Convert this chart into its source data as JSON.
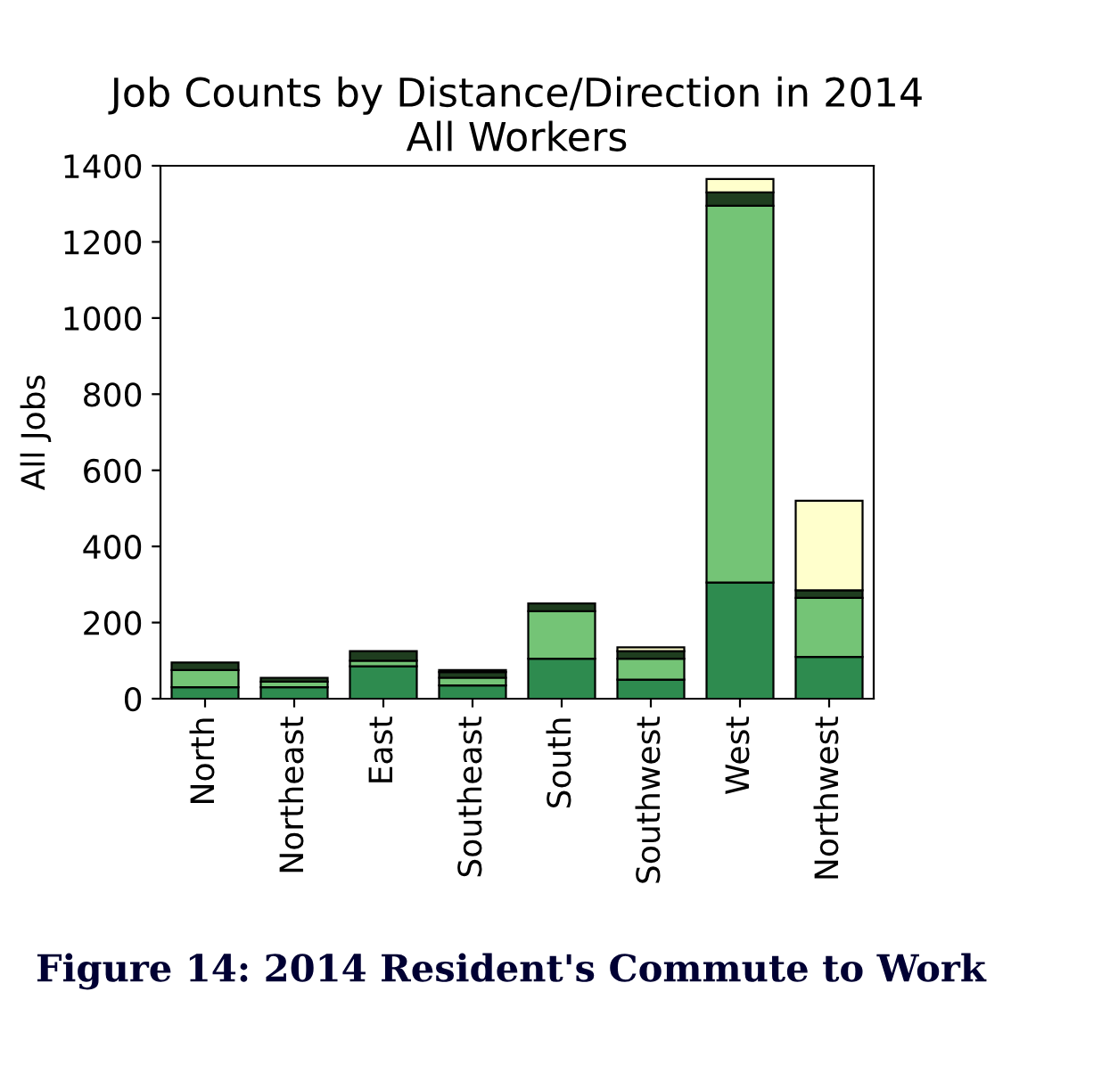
{
  "chart_data": {
    "type": "bar",
    "title": "Job Counts by Distance/Direction in 2014\nAll Workers",
    "ylabel": "All Jobs",
    "categories": [
      "North",
      "Northeast",
      "East",
      "Southeast",
      "South",
      "Southwest",
      "West",
      "Northwest"
    ],
    "stacked": true,
    "series": [
      {
        "color": "#2e8b4f",
        "values": [
          30,
          30,
          85,
          35,
          105,
          50,
          305,
          110
        ]
      },
      {
        "color": "#74c476",
        "values": [
          45,
          15,
          15,
          20,
          125,
          55,
          990,
          155
        ]
      },
      {
        "color": "#1f3d1f",
        "values": [
          20,
          10,
          25,
          15,
          20,
          20,
          35,
          20
        ]
      },
      {
        "color": "#ffffcc",
        "values": [
          null,
          null,
          null,
          5,
          null,
          10,
          35,
          235
        ]
      }
    ],
    "ylim": [
      0,
      1400
    ],
    "yticks": [
      0,
      200,
      400,
      600,
      800,
      1000,
      1200,
      1400
    ],
    "grid": false,
    "legend": false,
    "annotations": [
      "Figure 14: 2014 Resident's Commute to Work"
    ]
  }
}
